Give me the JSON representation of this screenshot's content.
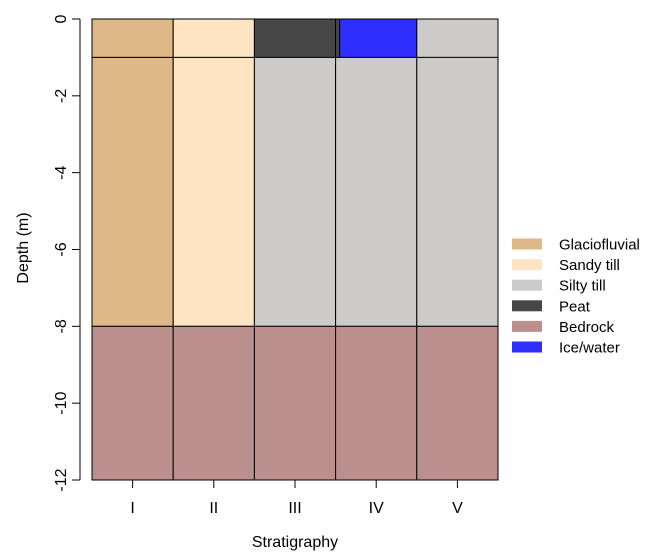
{
  "chart_data": {
    "type": "bar",
    "xlabel": "Stratigraphy",
    "ylabel": "Depth (m)",
    "categories": [
      "I",
      "II",
      "III",
      "IV",
      "V"
    ],
    "ylim": [
      -12,
      0
    ],
    "yticks": [
      "0",
      "-2",
      "-4",
      "-6",
      "-8",
      "-10",
      "-12"
    ],
    "ytick_values": [
      0,
      -2,
      -4,
      -6,
      -8,
      -10,
      -12
    ],
    "legend_position": "right",
    "legend": [
      {
        "label": "Glaciofluvial",
        "color": "#DEB887"
      },
      {
        "label": "Sandy till",
        "color": "#FFE4C4"
      },
      {
        "label": "Silty till",
        "color": "#CDCACA"
      },
      {
        "label": "Peat",
        "color": "#474747"
      },
      {
        "label": "Bedrock",
        "color": "#BC8F8F"
      },
      {
        "label": "Ice/water",
        "color": "#2E2EFF"
      }
    ],
    "layers": [
      {
        "column": "I",
        "segments": [
          {
            "material": "Glaciofluvial",
            "top": 0,
            "bottom": -1
          },
          {
            "material": "Glaciofluvial",
            "top": -1,
            "bottom": -8
          },
          {
            "material": "Bedrock",
            "top": -8,
            "bottom": -12
          }
        ]
      },
      {
        "column": "II",
        "segments": [
          {
            "material": "Sandy till",
            "top": 0,
            "bottom": -1
          },
          {
            "material": "Sandy till",
            "top": -1,
            "bottom": -8
          },
          {
            "material": "Bedrock",
            "top": -8,
            "bottom": -12
          }
        ]
      },
      {
        "column": "III",
        "segments": [
          {
            "material": "Peat",
            "top": 0,
            "bottom": -1
          },
          {
            "material": "Silty till",
            "top": -1,
            "bottom": -8
          },
          {
            "material": "Bedrock",
            "top": -8,
            "bottom": -12
          }
        ]
      },
      {
        "column": "IV",
        "segments": [
          {
            "material": "Peat",
            "top": 0,
            "bottom": -1,
            "from": 0,
            "to": 0.05
          },
          {
            "material": "Ice/water",
            "top": 0,
            "bottom": -1,
            "from": 0.05,
            "to": 1
          },
          {
            "material": "Silty till",
            "top": -1,
            "bottom": -8
          },
          {
            "material": "Bedrock",
            "top": -8,
            "bottom": -12
          }
        ]
      },
      {
        "column": "V",
        "segments": [
          {
            "material": "Silty till",
            "top": 0,
            "bottom": -1
          },
          {
            "material": "Silty till",
            "top": -1,
            "bottom": -8
          },
          {
            "material": "Bedrock",
            "top": -8,
            "bottom": -12
          }
        ]
      }
    ]
  }
}
